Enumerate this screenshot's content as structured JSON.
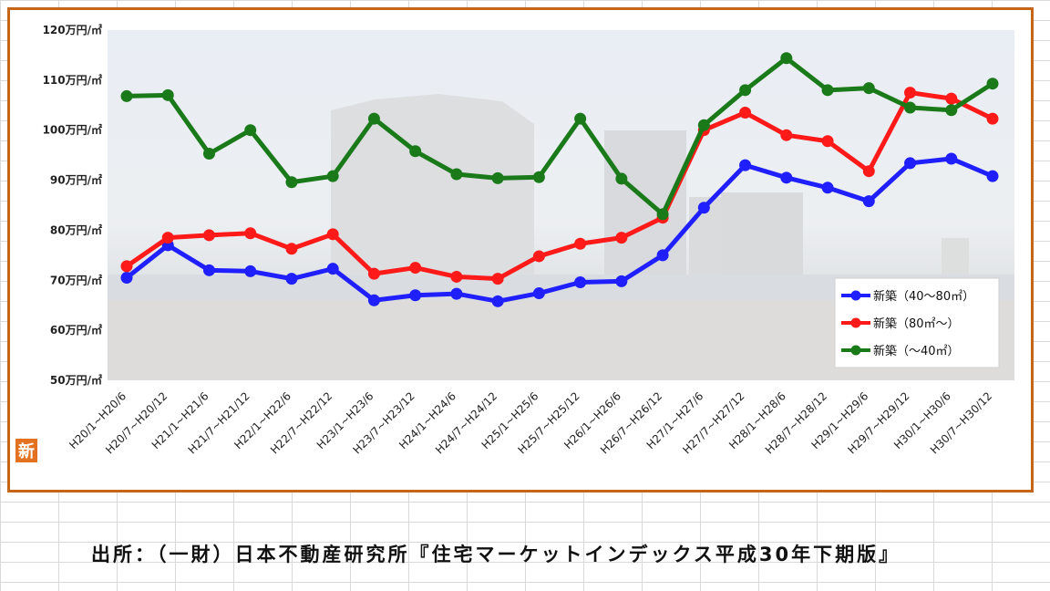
{
  "chart_data": {
    "type": "line",
    "ylim": [
      50,
      120
    ],
    "y_ticks": [
      "50万円/㎡",
      "60万円/㎡",
      "70万円/㎡",
      "80万円/㎡",
      "90万円/㎡",
      "100万円/㎡",
      "110万円/㎡",
      "120万円/㎡"
    ],
    "categories": [
      "H20/1~H20/6",
      "H20/7~H20/12",
      "H21/1~H21/6",
      "H21/7~H21/12",
      "H22/1~H22/6",
      "H22/7~H22/12",
      "H23/1~H23/6",
      "H23/7~H23/12",
      "H24/1~H24/6",
      "H24/7~H24/12",
      "H25/1~H25/6",
      "H25/7~H25/12",
      "H26/1~H26/6",
      "H26/7~H26/12",
      "H27/1~H27/6",
      "H27/7~H27/12",
      "H28/1~H28/6",
      "H28/7~H28/12",
      "H29/1~H29/6",
      "H29/7~H29/12",
      "H30/1~H30/6",
      "H30/7~H30/12"
    ],
    "series": [
      {
        "name": "新築（40～80㎡）",
        "color": "#1f1fff",
        "values": [
          70.5,
          77,
          72,
          71.8,
          70.3,
          72.3,
          66,
          67,
          67.3,
          65.8,
          67.4,
          69.6,
          69.8,
          75,
          84.5,
          93,
          90.5,
          88.5,
          85.8,
          93.4,
          94.3,
          90.8
        ]
      },
      {
        "name": "新築（80㎡～）",
        "color": "#ff1a1a",
        "values": [
          72.8,
          78.5,
          79,
          79.4,
          76.3,
          79.2,
          71.3,
          72.5,
          70.7,
          70.3,
          74.8,
          77.3,
          78.5,
          82.5,
          100,
          103.5,
          99,
          97.8,
          91.8,
          107.5,
          106.3,
          102.3
        ]
      },
      {
        "name": "新築（～40㎡）",
        "color": "#1a7a1a",
        "values": [
          106.8,
          107,
          95.3,
          100,
          89.6,
          90.8,
          102.3,
          95.8,
          91.2,
          90.4,
          90.6,
          102.3,
          90.3,
          83.2,
          101,
          108,
          114.4,
          108,
          108.4,
          104.5,
          104,
          109.3
        ]
      }
    ],
    "legend_position": "right",
    "grid": false,
    "badge": "新"
  },
  "source_note": "出所：（一財）日本不動産研究所『住宅マーケットインデックス平成30年下期版』"
}
